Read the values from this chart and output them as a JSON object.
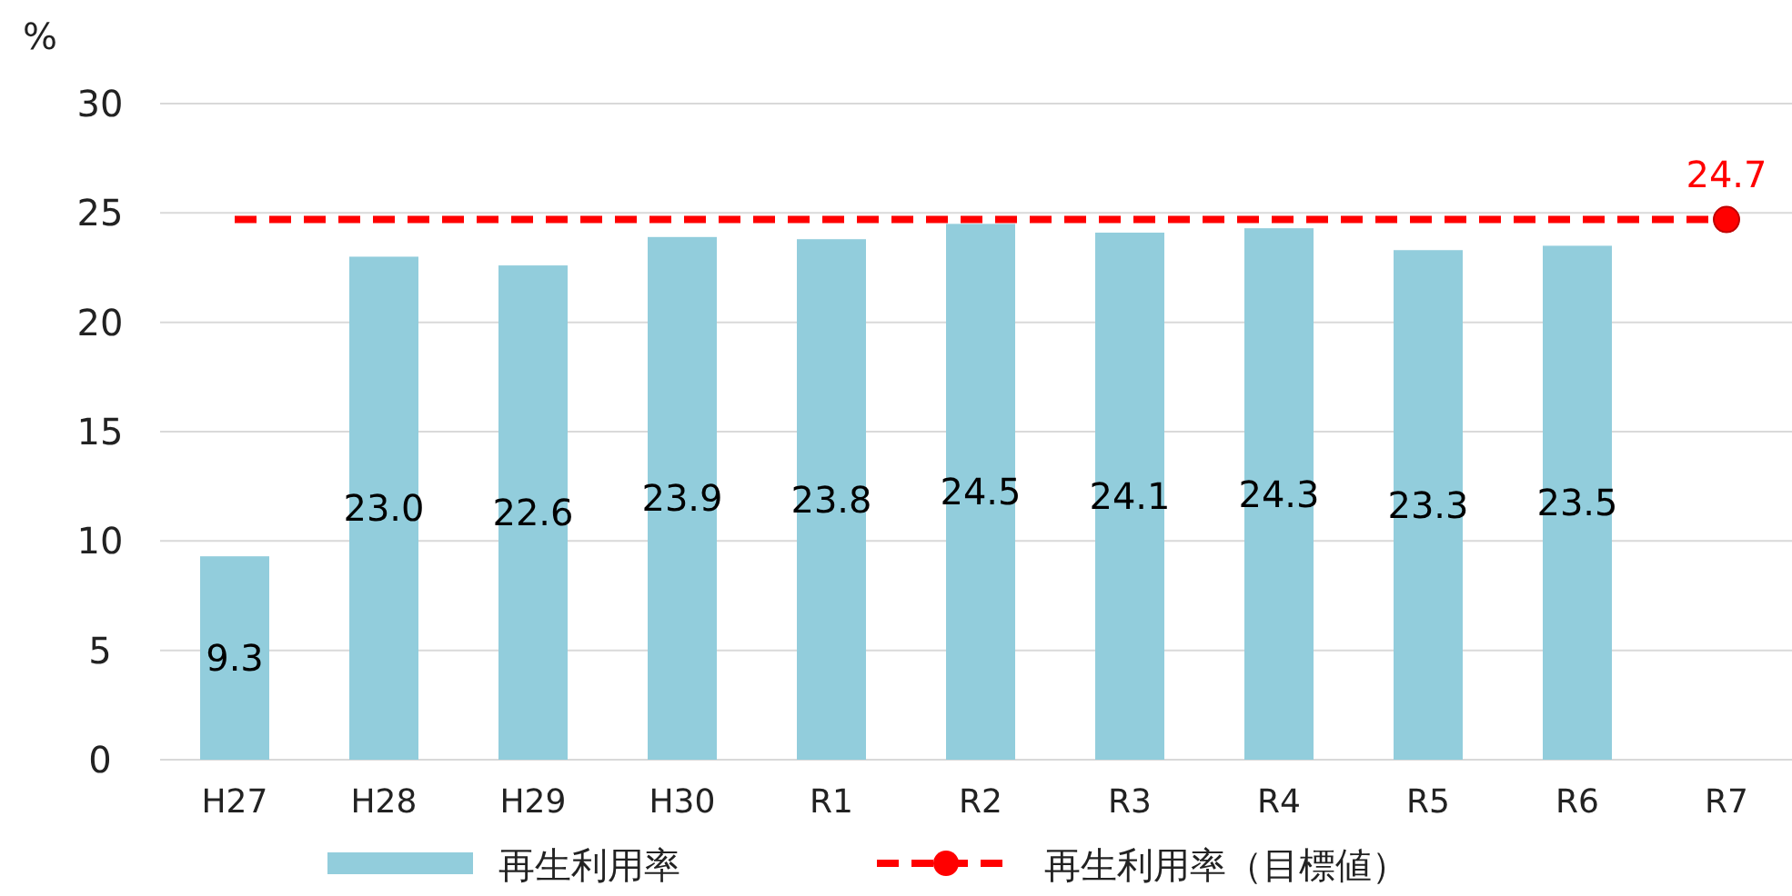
{
  "chart_data": {
    "type": "bar",
    "ylabel": "%",
    "categories": [
      "H27",
      "H28",
      "H29",
      "H30",
      "R1",
      "R2",
      "R3",
      "R4",
      "R5",
      "R6",
      "R7"
    ],
    "series": [
      {
        "name": "再生利用率",
        "color": "#92cddc",
        "values": [
          9.3,
          23.0,
          22.6,
          23.9,
          23.8,
          24.5,
          24.1,
          24.3,
          23.3,
          23.5,
          null
        ],
        "value_labels": [
          "9.3",
          "23.0",
          "22.6",
          "23.9",
          "23.8",
          "24.5",
          "24.1",
          "24.3",
          "23.3",
          "23.5",
          null
        ]
      },
      {
        "name": "再生利用率（目標値）",
        "type": "line",
        "color": "#ff0000",
        "marker": "circle",
        "line_style": "dashed",
        "values": [
          null,
          null,
          null,
          null,
          null,
          null,
          null,
          null,
          null,
          null,
          24.7
        ],
        "value_labels": [
          null,
          null,
          null,
          null,
          null,
          null,
          null,
          null,
          null,
          null,
          "24.7"
        ]
      }
    ],
    "ref_lines": [
      {
        "axis": "y",
        "value": 24.7,
        "color": "#ff0000",
        "line_style": "dashed"
      }
    ],
    "ylim": [
      0,
      30
    ],
    "yticks": [
      0,
      5,
      10,
      15,
      20,
      25,
      30
    ],
    "grid": "y",
    "legend": "bottom"
  }
}
